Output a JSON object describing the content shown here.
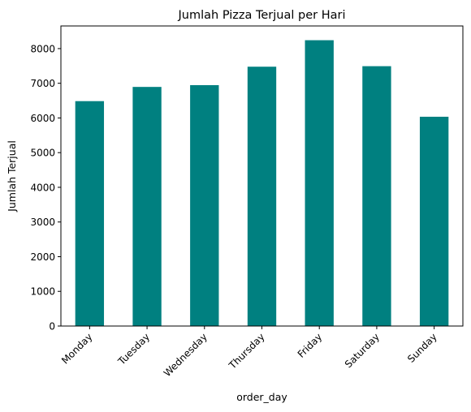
{
  "chart_data": {
    "type": "bar",
    "title": "Jumlah Pizza Terjual per Hari",
    "xlabel": "order_day",
    "ylabel": "Jumlah Terjual",
    "categories": [
      "Monday",
      "Tuesday",
      "Wednesday",
      "Thursday",
      "Friday",
      "Saturday",
      "Sunday"
    ],
    "values": [
      6485,
      6895,
      6946,
      7478,
      8242,
      7493,
      6035
    ],
    "ylim": [
      0,
      8653
    ],
    "yticks": [
      0,
      1000,
      2000,
      3000,
      4000,
      5000,
      6000,
      7000,
      8000
    ],
    "ytick_labels": [
      "0",
      "1000",
      "2000",
      "3000",
      "4000",
      "5000",
      "6000",
      "7000",
      "8000"
    ],
    "bar_color": "#008080",
    "grid": false,
    "legend": "none"
  }
}
